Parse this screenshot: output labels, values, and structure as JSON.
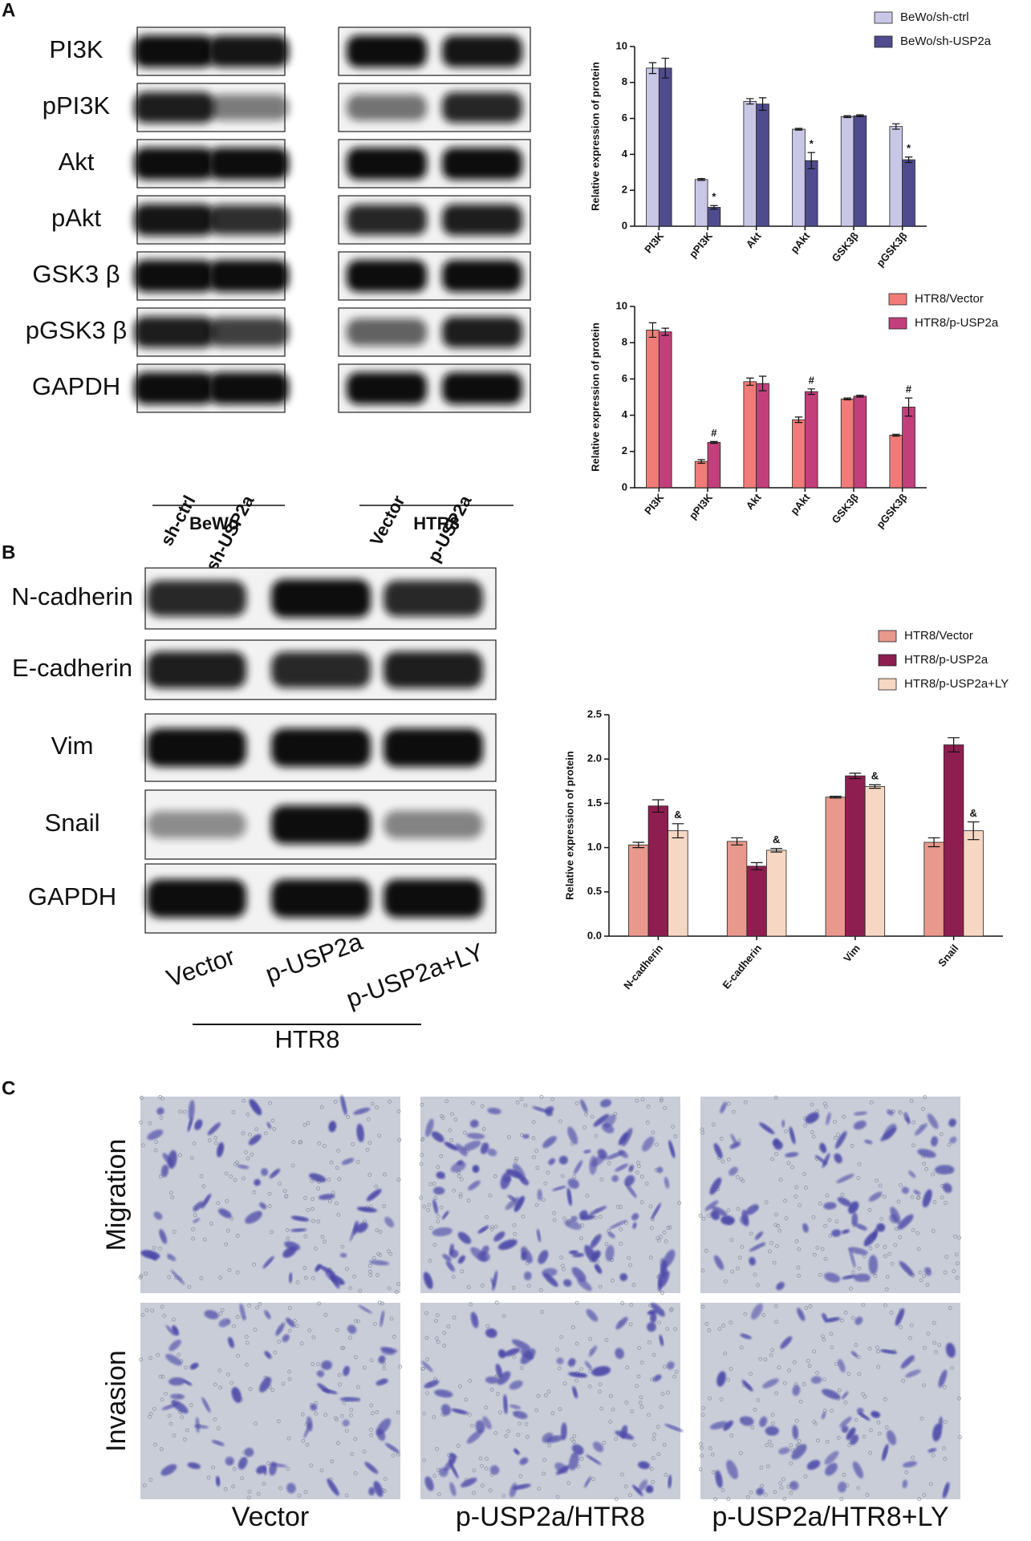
{
  "panels": {
    "a": "A",
    "b": "B",
    "c": "C"
  },
  "blot_a": {
    "rows": [
      "PI3K",
      "pPI3K",
      "Akt",
      "pAkt",
      "GSK3 β",
      "pGSK3 β",
      "GAPDH"
    ],
    "lanes": [
      "sh-ctrl",
      "sh-USP2a",
      "Vector",
      "p-USP2a"
    ],
    "groups": [
      "BeWo",
      "HTR8"
    ]
  },
  "blot_b": {
    "rows": [
      "N-cadherin",
      "E-cadherin",
      "Vim",
      "Snail",
      "GAPDH"
    ],
    "lanes": [
      "Vector",
      "p-USP2a",
      "p-USP2a+LY"
    ],
    "group": "HTR8"
  },
  "micrographs": {
    "rows": [
      "Migration",
      "Invasion"
    ],
    "columns": [
      "Vector",
      "p-USP2a/HTR8",
      "p-USP2a/HTR8+LY"
    ]
  },
  "chart_data": [
    {
      "type": "bar",
      "y_label": "Relative expression of protein",
      "categories": [
        "PI3K",
        "pPI3K",
        "Akt",
        "pAkt",
        "GSK3β",
        "pGSK3β"
      ],
      "series": [
        {
          "name": "BeWo/sh-ctrl",
          "color": "#c9c6e6",
          "values": [
            8.8,
            2.6,
            6.95,
            5.4,
            6.1,
            5.55
          ],
          "errors": [
            0.3,
            0.05,
            0.15,
            0.05,
            0.05,
            0.15
          ]
        },
        {
          "name": "BeWo/sh-USP2a",
          "color": "#4f4b8e",
          "values": [
            8.8,
            1.05,
            6.8,
            3.65,
            6.15,
            3.7
          ],
          "errors": [
            0.55,
            0.1,
            0.35,
            0.45,
            0.05,
            0.15
          ],
          "significance": [
            null,
            "*",
            null,
            "*",
            null,
            "*"
          ]
        }
      ],
      "ylim": [
        0,
        10
      ],
      "yticks": [
        0,
        2,
        4,
        6,
        8,
        10
      ]
    },
    {
      "type": "bar",
      "y_label": "Relative expression of protein",
      "categories": [
        "PI3K",
        "pPI3K",
        "Akt",
        "pAkt",
        "GSK3β",
        "pGSK3β"
      ],
      "series": [
        {
          "name": "HTR8/Vector",
          "color": "#f17b78",
          "values": [
            8.7,
            1.45,
            5.85,
            3.75,
            4.9,
            2.9
          ],
          "errors": [
            0.4,
            0.1,
            0.2,
            0.15,
            0.05,
            0.05
          ]
        },
        {
          "name": "HTR8/p-USP2a",
          "color": "#c33f7c",
          "values": [
            8.6,
            2.5,
            5.75,
            5.3,
            5.05,
            4.45
          ],
          "errors": [
            0.2,
            0.05,
            0.4,
            0.15,
            0.05,
            0.5
          ],
          "significance": [
            null,
            "#",
            null,
            "#",
            null,
            "#"
          ]
        }
      ],
      "ylim": [
        0,
        10
      ],
      "yticks": [
        0,
        2,
        4,
        6,
        8,
        10
      ]
    },
    {
      "type": "bar",
      "y_label": "Relative expression of protein",
      "categories": [
        "N-cadherin",
        "E-cadherin",
        "Vim",
        "Snail"
      ],
      "series": [
        {
          "name": "HTR8/Vector",
          "color": "#e8988c",
          "values": [
            1.03,
            1.07,
            1.57,
            1.06
          ],
          "errors": [
            0.03,
            0.04,
            0.01,
            0.05
          ]
        },
        {
          "name": "HTR8/p-USP2a",
          "color": "#8e1e50",
          "values": [
            1.47,
            0.79,
            1.81,
            2.16
          ],
          "errors": [
            0.07,
            0.04,
            0.03,
            0.08
          ]
        },
        {
          "name": "HTR8/p-USP2a+LY",
          "color": "#f6d7c3",
          "values": [
            1.19,
            0.97,
            1.69,
            1.19
          ],
          "errors": [
            0.08,
            0.02,
            0.02,
            0.1
          ],
          "significance": [
            "&",
            "&",
            "&",
            "&"
          ]
        }
      ],
      "ylim": [
        0,
        2.5
      ],
      "yticks": [
        {
          "value": 0,
          "label": "0.0"
        },
        0.5,
        {
          "value": 1,
          "label": "1.0"
        },
        1.5,
        {
          "value": 2,
          "label": "2.0"
        },
        2.5
      ]
    }
  ]
}
